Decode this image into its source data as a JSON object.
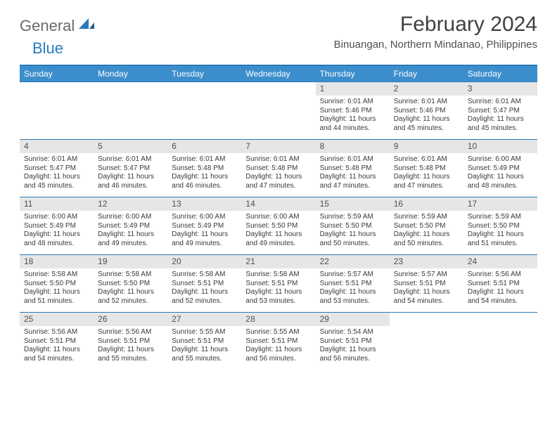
{
  "logo": {
    "general": "General",
    "blue": "Blue"
  },
  "title": "February 2024",
  "location": "Binuangan, Northern Mindanao, Philippines",
  "colors": {
    "header_bg": "#3c8dcc",
    "header_text": "#ffffff",
    "rule": "#2a7ab8",
    "daynum_bg": "#e6e6e6",
    "body_text": "#3a3a3a",
    "title_text": "#404040"
  },
  "day_headers": [
    "Sunday",
    "Monday",
    "Tuesday",
    "Wednesday",
    "Thursday",
    "Friday",
    "Saturday"
  ],
  "weeks": [
    [
      null,
      null,
      null,
      null,
      {
        "n": "1",
        "sr": "6:01 AM",
        "ss": "5:46 PM",
        "d1": "Daylight: 11 hours",
        "d2": "and 44 minutes."
      },
      {
        "n": "2",
        "sr": "6:01 AM",
        "ss": "5:46 PM",
        "d1": "Daylight: 11 hours",
        "d2": "and 45 minutes."
      },
      {
        "n": "3",
        "sr": "6:01 AM",
        "ss": "5:47 PM",
        "d1": "Daylight: 11 hours",
        "d2": "and 45 minutes."
      }
    ],
    [
      {
        "n": "4",
        "sr": "6:01 AM",
        "ss": "5:47 PM",
        "d1": "Daylight: 11 hours",
        "d2": "and 45 minutes."
      },
      {
        "n": "5",
        "sr": "6:01 AM",
        "ss": "5:47 PM",
        "d1": "Daylight: 11 hours",
        "d2": "and 46 minutes."
      },
      {
        "n": "6",
        "sr": "6:01 AM",
        "ss": "5:48 PM",
        "d1": "Daylight: 11 hours",
        "d2": "and 46 minutes."
      },
      {
        "n": "7",
        "sr": "6:01 AM",
        "ss": "5:48 PM",
        "d1": "Daylight: 11 hours",
        "d2": "and 47 minutes."
      },
      {
        "n": "8",
        "sr": "6:01 AM",
        "ss": "5:48 PM",
        "d1": "Daylight: 11 hours",
        "d2": "and 47 minutes."
      },
      {
        "n": "9",
        "sr": "6:01 AM",
        "ss": "5:48 PM",
        "d1": "Daylight: 11 hours",
        "d2": "and 47 minutes."
      },
      {
        "n": "10",
        "sr": "6:00 AM",
        "ss": "5:49 PM",
        "d1": "Daylight: 11 hours",
        "d2": "and 48 minutes."
      }
    ],
    [
      {
        "n": "11",
        "sr": "6:00 AM",
        "ss": "5:49 PM",
        "d1": "Daylight: 11 hours",
        "d2": "and 48 minutes."
      },
      {
        "n": "12",
        "sr": "6:00 AM",
        "ss": "5:49 PM",
        "d1": "Daylight: 11 hours",
        "d2": "and 49 minutes."
      },
      {
        "n": "13",
        "sr": "6:00 AM",
        "ss": "5:49 PM",
        "d1": "Daylight: 11 hours",
        "d2": "and 49 minutes."
      },
      {
        "n": "14",
        "sr": "6:00 AM",
        "ss": "5:50 PM",
        "d1": "Daylight: 11 hours",
        "d2": "and 49 minutes."
      },
      {
        "n": "15",
        "sr": "5:59 AM",
        "ss": "5:50 PM",
        "d1": "Daylight: 11 hours",
        "d2": "and 50 minutes."
      },
      {
        "n": "16",
        "sr": "5:59 AM",
        "ss": "5:50 PM",
        "d1": "Daylight: 11 hours",
        "d2": "and 50 minutes."
      },
      {
        "n": "17",
        "sr": "5:59 AM",
        "ss": "5:50 PM",
        "d1": "Daylight: 11 hours",
        "d2": "and 51 minutes."
      }
    ],
    [
      {
        "n": "18",
        "sr": "5:58 AM",
        "ss": "5:50 PM",
        "d1": "Daylight: 11 hours",
        "d2": "and 51 minutes."
      },
      {
        "n": "19",
        "sr": "5:58 AM",
        "ss": "5:50 PM",
        "d1": "Daylight: 11 hours",
        "d2": "and 52 minutes."
      },
      {
        "n": "20",
        "sr": "5:58 AM",
        "ss": "5:51 PM",
        "d1": "Daylight: 11 hours",
        "d2": "and 52 minutes."
      },
      {
        "n": "21",
        "sr": "5:58 AM",
        "ss": "5:51 PM",
        "d1": "Daylight: 11 hours",
        "d2": "and 53 minutes."
      },
      {
        "n": "22",
        "sr": "5:57 AM",
        "ss": "5:51 PM",
        "d1": "Daylight: 11 hours",
        "d2": "and 53 minutes."
      },
      {
        "n": "23",
        "sr": "5:57 AM",
        "ss": "5:51 PM",
        "d1": "Daylight: 11 hours",
        "d2": "and 54 minutes."
      },
      {
        "n": "24",
        "sr": "5:56 AM",
        "ss": "5:51 PM",
        "d1": "Daylight: 11 hours",
        "d2": "and 54 minutes."
      }
    ],
    [
      {
        "n": "25",
        "sr": "5:56 AM",
        "ss": "5:51 PM",
        "d1": "Daylight: 11 hours",
        "d2": "and 54 minutes."
      },
      {
        "n": "26",
        "sr": "5:56 AM",
        "ss": "5:51 PM",
        "d1": "Daylight: 11 hours",
        "d2": "and 55 minutes."
      },
      {
        "n": "27",
        "sr": "5:55 AM",
        "ss": "5:51 PM",
        "d1": "Daylight: 11 hours",
        "d2": "and 55 minutes."
      },
      {
        "n": "28",
        "sr": "5:55 AM",
        "ss": "5:51 PM",
        "d1": "Daylight: 11 hours",
        "d2": "and 56 minutes."
      },
      {
        "n": "29",
        "sr": "5:54 AM",
        "ss": "5:51 PM",
        "d1": "Daylight: 11 hours",
        "d2": "and 56 minutes."
      },
      null,
      null
    ]
  ],
  "labels": {
    "sunrise": "Sunrise: ",
    "sunset": "Sunset: "
  }
}
